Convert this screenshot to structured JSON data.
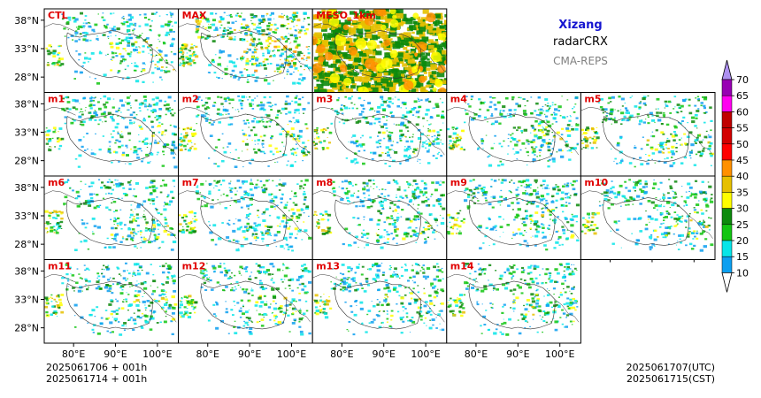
{
  "header": {
    "region": "Xizang",
    "variable": "radarCRX",
    "system": "CMA-REPS"
  },
  "footer": {
    "init_time_1": "2025061706  +  001h",
    "init_time_2": "2025061714  +  001h",
    "valid_utc": "2025061707(UTC)",
    "valid_cst": "2025061715(CST)"
  },
  "chart_data": {
    "type": "heatmap",
    "description_type": "ensemble postage-stamp maps of composite radar reflectivity",
    "panels": [
      {
        "label": "CTL"
      },
      {
        "label": "MAX"
      },
      {
        "label": "MESO_1km"
      },
      {
        "label": "m1"
      },
      {
        "label": "m2"
      },
      {
        "label": "m3"
      },
      {
        "label": "m4"
      },
      {
        "label": "m5"
      },
      {
        "label": "m6"
      },
      {
        "label": "m7"
      },
      {
        "label": "m8"
      },
      {
        "label": "m9"
      },
      {
        "label": "m10"
      },
      {
        "label": "m11"
      },
      {
        "label": "m12"
      },
      {
        "label": "m13"
      },
      {
        "label": "m14"
      }
    ],
    "x_ticks": [
      "80°E",
      "90°E",
      "100°E"
    ],
    "y_ticks": [
      "38°N",
      "33°N",
      "28°N"
    ],
    "colorbar": {
      "levels": [
        10,
        15,
        20,
        25,
        30,
        35,
        40,
        45,
        50,
        55,
        60,
        65,
        70
      ],
      "colors": [
        "#0c9ff0",
        "#07e5e8",
        "#12c512",
        "#0c8a0c",
        "#fffe00",
        "#e6c000",
        "#ff9000",
        "#ff0000",
        "#d30000",
        "#c00000",
        "#ff00f0",
        "#9800b3",
        "#ad90f0"
      ],
      "under_color": "#ffffff",
      "over_color": "#ad90f0"
    }
  }
}
